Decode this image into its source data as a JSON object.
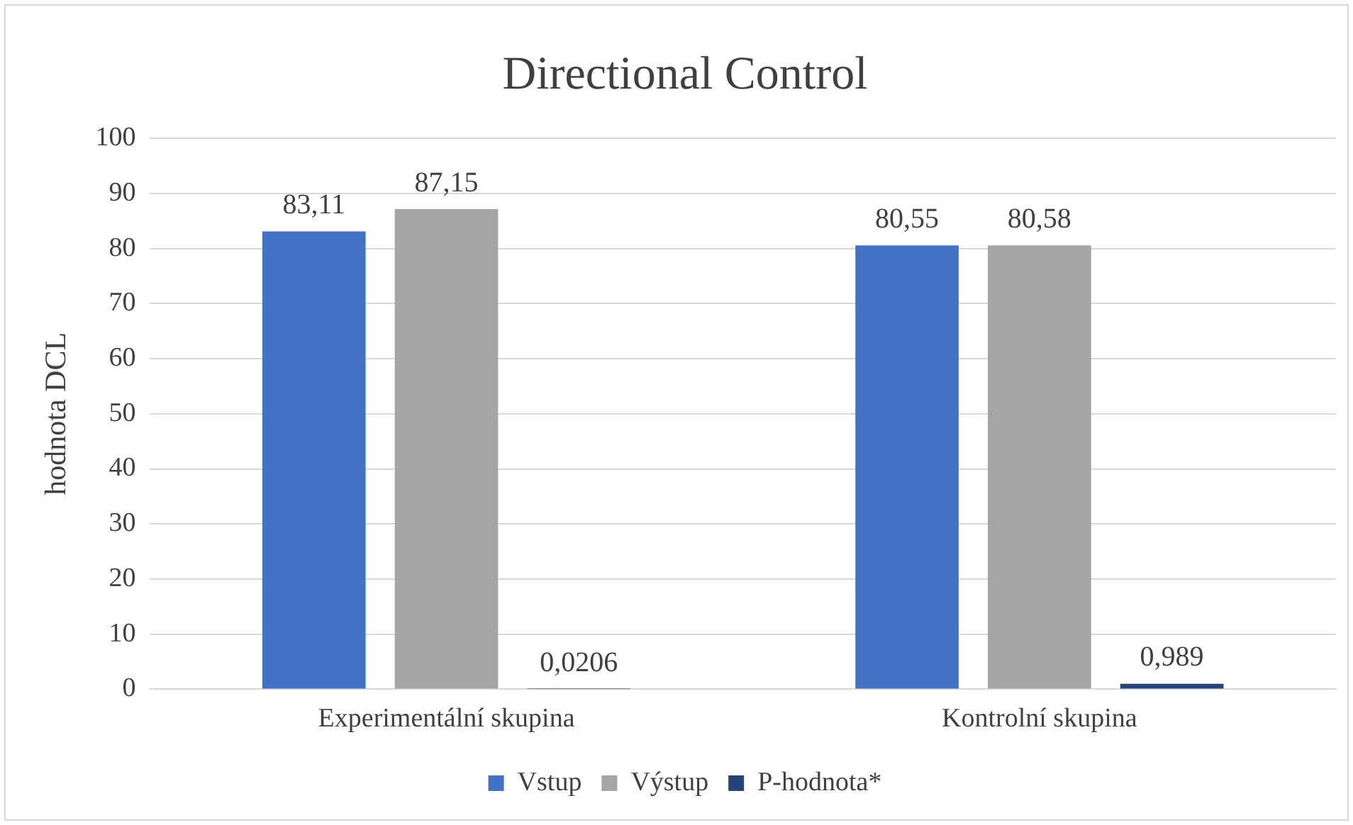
{
  "chart_data": {
    "type": "bar",
    "title": "Directional Control",
    "ylabel": "hodnota DCL",
    "categories": [
      "Experimentální skupina",
      "Kontrolní skupina"
    ],
    "series": [
      {
        "name": "Vstup",
        "color": "#4472c4",
        "values": [
          83.11,
          80.55
        ],
        "value_labels": [
          "83,11",
          "80,55"
        ]
      },
      {
        "name": "Výstup",
        "color": "#a5a5a5",
        "values": [
          87.15,
          80.58
        ],
        "value_labels": [
          "87,15",
          "80,58"
        ]
      },
      {
        "name": "P-hodnota*",
        "color": "#264478",
        "values": [
          0.0206,
          0.989
        ],
        "value_labels": [
          "0,0206",
          "0,989"
        ]
      }
    ],
    "ylim": [
      0,
      100
    ],
    "yticks": [
      0,
      10,
      20,
      30,
      40,
      50,
      60,
      70,
      80,
      90,
      100
    ],
    "grid": "y",
    "legend": "bottom"
  }
}
